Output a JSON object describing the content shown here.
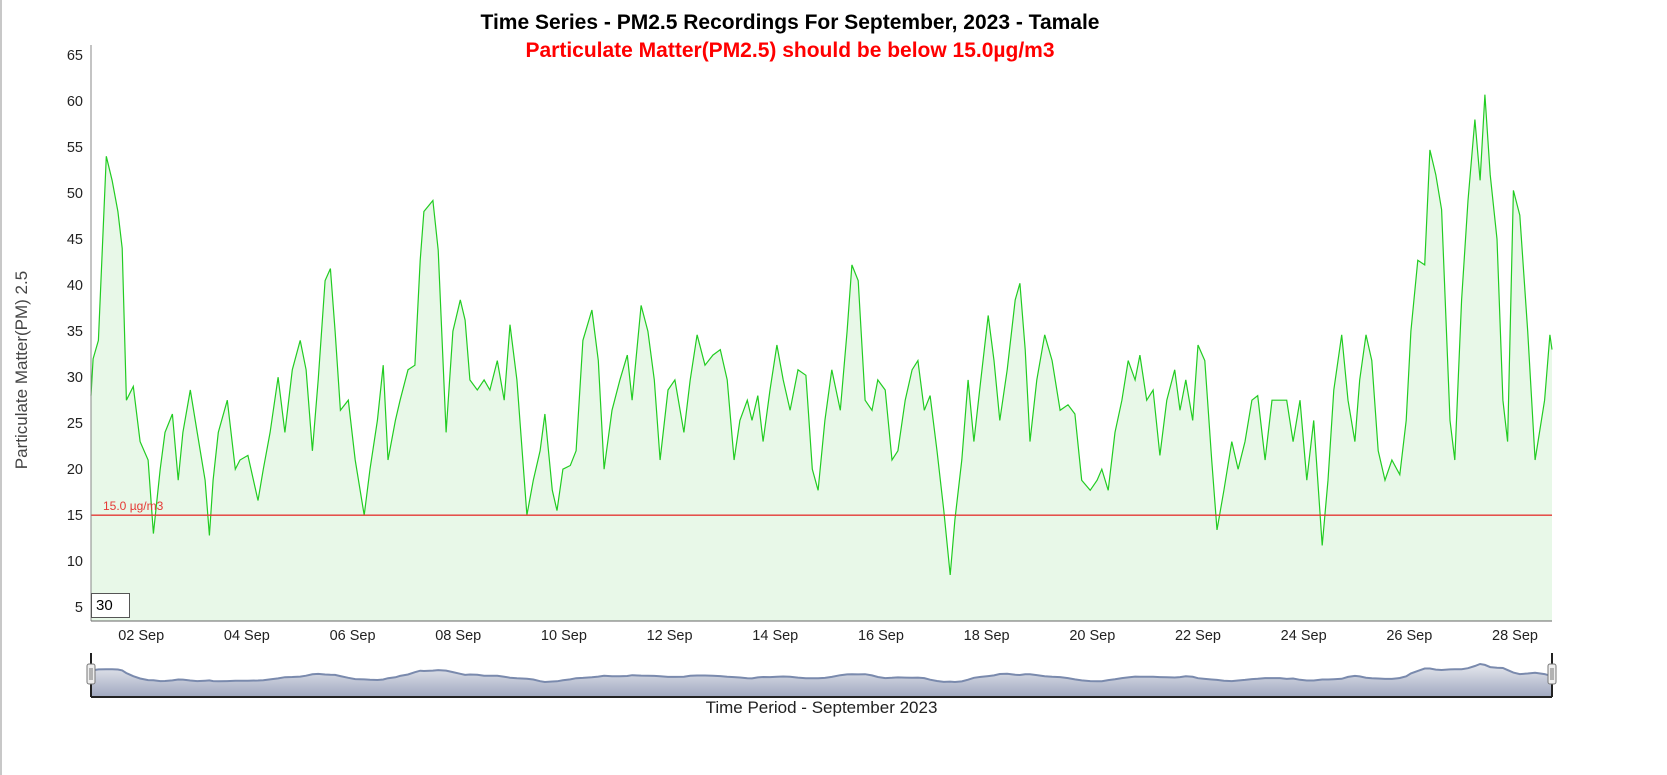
{
  "chart_data": {
    "type": "area",
    "title": "Time Series - PM2.5 Recordings For September, 2023 - Tamale",
    "subtitle": "Particulate Matter(PM2.5) should be below 15.0µg/m3",
    "xlabel": "Time Period - September 2023",
    "ylabel": "Particulate Matter(PM) 2.5",
    "x_unit": "day of September",
    "xlim": [
      1.05,
      28.7
    ],
    "ylim": [
      3.5,
      66.1
    ],
    "x_ticks": [
      2,
      4,
      6,
      8,
      10,
      12,
      14,
      16,
      18,
      20,
      22,
      24,
      26,
      28
    ],
    "x_tick_labels": [
      "02 Sep",
      "04 Sep",
      "06 Sep",
      "08 Sep",
      "10 Sep",
      "12 Sep",
      "14 Sep",
      "16 Sep",
      "18 Sep",
      "20 Sep",
      "22 Sep",
      "24 Sep",
      "26 Sep",
      "28 Sep"
    ],
    "y_ticks": [
      5,
      10,
      15,
      20,
      25,
      30,
      35,
      40,
      45,
      50,
      55,
      60,
      65
    ],
    "y_tick_labels": [
      "5",
      "10",
      "15",
      "20",
      "25",
      "30",
      "35",
      "40",
      "45",
      "50",
      "55",
      "60",
      "65"
    ],
    "threshold": {
      "value": 15.0,
      "label": "15.0 µg/m3",
      "color": "#e53935"
    },
    "series_color": "#22cc22",
    "fill_color": "#e8f8e8",
    "grid": false,
    "legend": "none",
    "rolling_period": "30",
    "series": [
      {
        "name": "PM2.5",
        "points": [
          [
            1.05,
            28
          ],
          [
            1.09,
            32
          ],
          [
            1.19,
            34
          ],
          [
            1.34,
            54
          ],
          [
            1.45,
            51.4
          ],
          [
            1.56,
            48
          ],
          [
            1.64,
            44
          ],
          [
            1.72,
            27.5
          ],
          [
            1.85,
            29
          ],
          [
            1.98,
            23
          ],
          [
            2.13,
            21
          ],
          [
            2.23,
            13
          ],
          [
            2.36,
            20
          ],
          [
            2.45,
            24
          ],
          [
            2.59,
            26
          ],
          [
            2.7,
            18.8
          ],
          [
            2.79,
            24
          ],
          [
            2.93,
            28.6
          ],
          [
            3.06,
            24
          ],
          [
            3.21,
            18.8
          ],
          [
            3.29,
            12.8
          ],
          [
            3.36,
            18.8
          ],
          [
            3.46,
            24
          ],
          [
            3.63,
            27.5
          ],
          [
            3.78,
            20
          ],
          [
            3.87,
            21
          ],
          [
            4.02,
            21.5
          ],
          [
            4.21,
            16.6
          ],
          [
            4.31,
            20
          ],
          [
            4.44,
            24
          ],
          [
            4.59,
            30
          ],
          [
            4.72,
            24
          ],
          [
            4.86,
            30.8
          ],
          [
            5.01,
            34
          ],
          [
            5.12,
            30.8
          ],
          [
            5.24,
            22
          ],
          [
            5.35,
            29.7
          ],
          [
            5.48,
            40.5
          ],
          [
            5.58,
            41.8
          ],
          [
            5.67,
            35
          ],
          [
            5.77,
            26.4
          ],
          [
            5.92,
            27.5
          ],
          [
            6.05,
            21
          ],
          [
            6.22,
            15
          ],
          [
            6.33,
            20
          ],
          [
            6.47,
            25.3
          ],
          [
            6.58,
            31.3
          ],
          [
            6.67,
            21
          ],
          [
            6.81,
            25.3
          ],
          [
            6.9,
            27.5
          ],
          [
            7.05,
            30.8
          ],
          [
            7.18,
            31.3
          ],
          [
            7.28,
            42.7
          ],
          [
            7.35,
            48
          ],
          [
            7.52,
            49.2
          ],
          [
            7.62,
            43.8
          ],
          [
            7.77,
            24
          ],
          [
            7.9,
            35
          ],
          [
            8.04,
            38.4
          ],
          [
            8.13,
            36.2
          ],
          [
            8.22,
            29.7
          ],
          [
            8.36,
            28.6
          ],
          [
            8.49,
            29.7
          ],
          [
            8.6,
            28.6
          ],
          [
            8.74,
            31.8
          ],
          [
            8.87,
            27.5
          ],
          [
            8.98,
            35.7
          ],
          [
            9.11,
            29.7
          ],
          [
            9.3,
            15
          ],
          [
            9.42,
            18.8
          ],
          [
            9.55,
            22
          ],
          [
            9.64,
            26
          ],
          [
            9.78,
            17.7
          ],
          [
            9.87,
            15.5
          ],
          [
            9.98,
            20
          ],
          [
            10.12,
            20.4
          ],
          [
            10.23,
            22
          ],
          [
            10.36,
            34
          ],
          [
            10.53,
            37.3
          ],
          [
            10.65,
            31.8
          ],
          [
            10.76,
            20
          ],
          [
            10.91,
            26.4
          ],
          [
            11.06,
            29.7
          ],
          [
            11.2,
            32.4
          ],
          [
            11.29,
            27.5
          ],
          [
            11.46,
            37.8
          ],
          [
            11.59,
            35
          ],
          [
            11.71,
            29.7
          ],
          [
            11.82,
            21
          ],
          [
            11.97,
            28.6
          ],
          [
            12.1,
            29.7
          ],
          [
            12.27,
            24
          ],
          [
            12.39,
            29.7
          ],
          [
            12.52,
            34.6
          ],
          [
            12.67,
            31.3
          ],
          [
            12.82,
            32.4
          ],
          [
            12.96,
            33
          ],
          [
            13.09,
            29.7
          ],
          [
            13.22,
            21
          ],
          [
            13.33,
            25.3
          ],
          [
            13.47,
            27.5
          ],
          [
            13.56,
            25.3
          ],
          [
            13.67,
            28
          ],
          [
            13.77,
            23
          ],
          [
            13.9,
            28.6
          ],
          [
            14.03,
            33.5
          ],
          [
            14.15,
            29.7
          ],
          [
            14.28,
            26.4
          ],
          [
            14.43,
            30.8
          ],
          [
            14.58,
            30.2
          ],
          [
            14.7,
            20
          ],
          [
            14.81,
            17.7
          ],
          [
            14.94,
            25.3
          ],
          [
            15.07,
            30.8
          ],
          [
            15.23,
            26.4
          ],
          [
            15.36,
            35
          ],
          [
            15.45,
            42.2
          ],
          [
            15.57,
            40.5
          ],
          [
            15.7,
            27.5
          ],
          [
            15.83,
            26.4
          ],
          [
            15.94,
            29.7
          ],
          [
            16.08,
            28.6
          ],
          [
            16.21,
            21
          ],
          [
            16.32,
            22
          ],
          [
            16.46,
            27.5
          ],
          [
            16.59,
            30.8
          ],
          [
            16.7,
            31.8
          ],
          [
            16.82,
            26.4
          ],
          [
            16.93,
            28
          ],
          [
            17.06,
            22
          ],
          [
            17.19,
            15.5
          ],
          [
            17.31,
            8.5
          ],
          [
            17.4,
            14.5
          ],
          [
            17.53,
            21
          ],
          [
            17.65,
            29.7
          ],
          [
            17.76,
            23
          ],
          [
            17.89,
            29.7
          ],
          [
            18.03,
            36.7
          ],
          [
            18.14,
            31.8
          ],
          [
            18.25,
            25.3
          ],
          [
            18.39,
            30.8
          ],
          [
            18.54,
            38.4
          ],
          [
            18.63,
            40.2
          ],
          [
            18.73,
            33
          ],
          [
            18.82,
            23
          ],
          [
            18.95,
            29.7
          ],
          [
            19.1,
            34.6
          ],
          [
            19.24,
            31.8
          ],
          [
            19.39,
            26.4
          ],
          [
            19.54,
            27
          ],
          [
            19.67,
            26
          ],
          [
            19.8,
            18.8
          ],
          [
            19.96,
            17.7
          ],
          [
            20.09,
            18.8
          ],
          [
            20.18,
            20
          ],
          [
            20.3,
            17.7
          ],
          [
            20.43,
            24
          ],
          [
            20.56,
            27.5
          ],
          [
            20.68,
            31.8
          ],
          [
            20.81,
            29.7
          ],
          [
            20.9,
            32.4
          ],
          [
            21.03,
            27.5
          ],
          [
            21.15,
            28.6
          ],
          [
            21.28,
            21.5
          ],
          [
            21.41,
            27.5
          ],
          [
            21.56,
            30.8
          ],
          [
            21.66,
            26.4
          ],
          [
            21.77,
            29.7
          ],
          [
            21.9,
            25.3
          ],
          [
            22.0,
            33.5
          ],
          [
            22.13,
            31.8
          ],
          [
            22.26,
            21
          ],
          [
            22.36,
            13.4
          ],
          [
            22.49,
            17.7
          ],
          [
            22.64,
            23
          ],
          [
            22.76,
            20
          ],
          [
            22.89,
            23
          ],
          [
            23.02,
            27.5
          ],
          [
            23.13,
            28
          ],
          [
            23.27,
            21
          ],
          [
            23.4,
            27.5
          ],
          [
            23.55,
            27.5
          ],
          [
            23.68,
            27.5
          ],
          [
            23.8,
            23
          ],
          [
            23.93,
            27.5
          ],
          [
            24.06,
            18.8
          ],
          [
            24.19,
            25.3
          ],
          [
            24.35,
            11.7
          ],
          [
            24.46,
            18.8
          ],
          [
            24.57,
            28.6
          ],
          [
            24.72,
            34.6
          ],
          [
            24.84,
            27.5
          ],
          [
            24.97,
            23
          ],
          [
            25.06,
            29.7
          ],
          [
            25.18,
            34.6
          ],
          [
            25.29,
            31.8
          ],
          [
            25.41,
            22
          ],
          [
            25.54,
            18.8
          ],
          [
            25.67,
            21
          ],
          [
            25.82,
            19.4
          ],
          [
            25.94,
            25.3
          ],
          [
            26.03,
            35
          ],
          [
            26.16,
            42.7
          ],
          [
            26.29,
            42.2
          ],
          [
            26.39,
            54.7
          ],
          [
            26.5,
            52
          ],
          [
            26.61,
            48.2
          ],
          [
            26.77,
            25.3
          ],
          [
            26.86,
            21
          ],
          [
            26.99,
            38.4
          ],
          [
            27.11,
            49.2
          ],
          [
            27.24,
            58
          ],
          [
            27.34,
            51.4
          ],
          [
            27.43,
            60.7
          ],
          [
            27.53,
            52
          ],
          [
            27.66,
            45
          ],
          [
            27.77,
            27.5
          ],
          [
            27.86,
            23
          ],
          [
            27.97,
            50.3
          ],
          [
            28.09,
            47.6
          ],
          [
            28.24,
            35
          ],
          [
            28.38,
            21
          ],
          [
            28.56,
            27.5
          ],
          [
            28.66,
            34.6
          ],
          [
            28.7,
            33
          ]
        ]
      }
    ]
  }
}
